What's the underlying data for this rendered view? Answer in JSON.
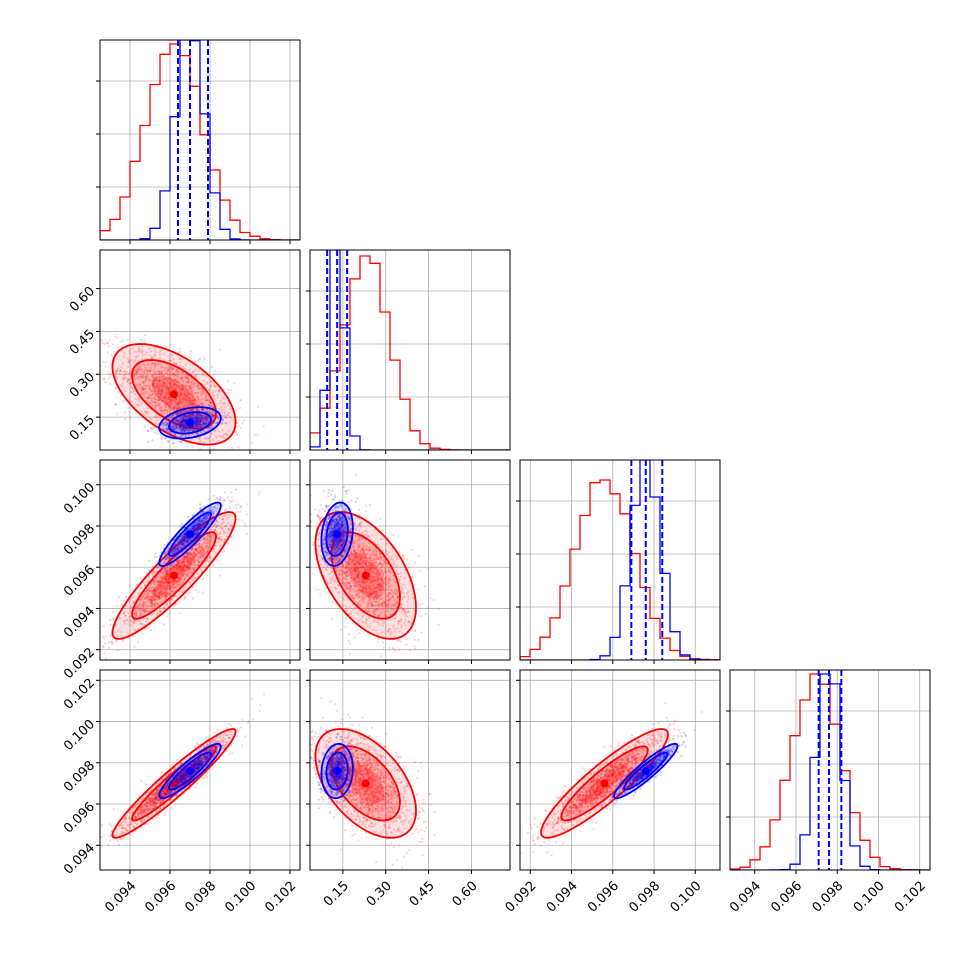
{
  "chart_data": {
    "type": "corner",
    "colors": {
      "red": "#ff0000",
      "blue": "#0000ff"
    },
    "grid": true,
    "params": [
      {
        "range": [
          0.0925,
          0.1025
        ]
      },
      {
        "range": [
          0.035,
          0.735
        ]
      },
      {
        "range": [
          0.0915,
          0.1012
        ]
      },
      {
        "range": [
          0.0928,
          0.1025
        ]
      }
    ],
    "diag_ticks": [
      "",
      "",
      "",
      ""
    ],
    "x_ticks": [
      {
        "values": [
          0.094,
          0.096,
          0.098,
          0.1,
          0.102
        ],
        "labels": [
          "0.094",
          "0.096",
          "0.098",
          "0.100",
          "0.102"
        ]
      },
      {
        "values": [
          0.15,
          0.3,
          0.45,
          0.6
        ],
        "labels": [
          "0.15",
          "0.30",
          "0.45",
          "0.60"
        ]
      },
      {
        "values": [
          0.092,
          0.094,
          0.096,
          0.098,
          0.1
        ],
        "labels": [
          "0.092",
          "0.094",
          "0.096",
          "0.098",
          "0.100"
        ]
      },
      {
        "values": [
          0.094,
          0.096,
          0.098,
          0.1,
          0.102
        ],
        "labels": [
          "0.094",
          "0.096",
          "0.098",
          "0.100",
          "0.102"
        ]
      }
    ],
    "y_ticks": [
      null,
      {
        "values": [
          0.15,
          0.3,
          0.45,
          0.6
        ],
        "labels": [
          "0.15",
          "0.30",
          "0.45",
          "0.60"
        ]
      },
      {
        "values": [
          0.092,
          0.094,
          0.096,
          0.098,
          0.1
        ],
        "labels": [
          "0.092",
          "0.094",
          "0.096",
          "0.098",
          "0.100"
        ]
      },
      {
        "values": [
          0.094,
          0.096,
          0.098,
          0.1,
          0.102
        ],
        "labels": [
          "0.094",
          "0.096",
          "0.098",
          "0.100",
          "0.102"
        ]
      }
    ],
    "diag_grid_fractions": [
      0.265,
      0.53,
      0.795
    ],
    "series": [
      {
        "color": "#ff0000",
        "mean": [
          0.0962,
          0.23,
          0.0956,
          0.097
        ],
        "std": [
          0.0014,
          0.08,
          0.0014,
          0.0012
        ],
        "corr": [
          [
            1,
            -0.55,
            0.9,
            0.95
          ],
          [
            -0.55,
            1,
            -0.5,
            -0.5
          ],
          [
            0.9,
            -0.5,
            1,
            0.9
          ],
          [
            0.95,
            -0.5,
            0.9,
            1
          ]
        ],
        "quantiles": null,
        "hist_peak": [
          0.98,
          0.97,
          0.9,
          0.98
        ]
      },
      {
        "color": "#0000ff",
        "mean": [
          0.097,
          0.13,
          0.0976,
          0.0976
        ],
        "std": [
          0.0007,
          0.025,
          0.0007,
          0.0006
        ],
        "corr": [
          [
            1,
            0.3,
            0.9,
            0.9
          ],
          [
            0.3,
            1,
            0.2,
            0.1
          ],
          [
            0.9,
            0.2,
            1,
            0.92
          ],
          [
            0.9,
            0.1,
            0.92,
            1
          ]
        ],
        "quantiles": [
          [
            0.0964,
            0.097,
            0.0979
          ],
          [
            0.095,
            0.13,
            0.165
          ],
          [
            0.0969,
            0.0976,
            0.0984
          ],
          [
            0.0971,
            0.0976,
            0.0982
          ]
        ],
        "hist_peak": [
          1.0,
          1.0,
          1.0,
          0.98
        ]
      }
    ]
  }
}
